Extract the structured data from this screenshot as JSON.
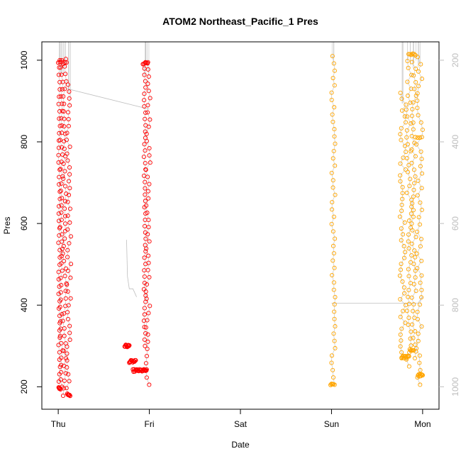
{
  "chart_data": {
    "type": "scatter",
    "title": "ATOM2 Northeast_Pacific_1 Pres",
    "xlabel": "Date",
    "ylabel": "Pres",
    "x_tick_labels": [
      "Thu",
      "Fri",
      "Sat",
      "Sun",
      "Mon"
    ],
    "x_tick_values": [
      0,
      1,
      2,
      3,
      4
    ],
    "xlim": [
      -0.18,
      4.18
    ],
    "ylim": [
      145,
      1045
    ],
    "y_ticks_left": [
      200,
      400,
      600,
      800,
      1000
    ],
    "y2_ticks_right": [
      200,
      400,
      600,
      800,
      1000
    ],
    "y2_note": "right axis inverted",
    "grid": false,
    "colors": {
      "red": "#ff0000",
      "orange": "#ffa500",
      "line": "#bebebe",
      "right_axis": "#bdbdbd"
    },
    "profiles": [
      {
        "color": "red",
        "x_start": 0.0,
        "x_end": 0.02,
        "p_top": 195,
        "p_bottom": 1000
      },
      {
        "color": "red",
        "x_start": 0.02,
        "x_end": 0.05,
        "p_top": 200,
        "p_bottom": 1000
      },
      {
        "color": "red",
        "x_start": 0.05,
        "x_end": 0.09,
        "p_top": 178,
        "p_bottom": 1003
      },
      {
        "color": "red",
        "x_start": 0.09,
        "x_end": 0.14,
        "p_top": 180,
        "p_bottom": 940
      },
      {
        "color": "red",
        "x_start": 0.94,
        "x_end": 0.96,
        "p_top": 300,
        "p_bottom": 995
      },
      {
        "color": "red",
        "x_start": 0.96,
        "x_end": 1.01,
        "p_top": 205,
        "p_bottom": 995
      },
      {
        "color": "orange",
        "x_start": 3.0,
        "x_end": 3.04,
        "p_top": 205,
        "p_bottom": 1010
      },
      {
        "color": "orange",
        "x_start": 3.75,
        "x_end": 3.82,
        "p_top": 270,
        "p_bottom": 920
      },
      {
        "color": "orange",
        "x_start": 3.82,
        "x_end": 3.88,
        "p_top": 250,
        "p_bottom": 1015
      },
      {
        "color": "orange",
        "x_start": 3.88,
        "x_end": 3.93,
        "p_top": 270,
        "p_bottom": 1012
      },
      {
        "color": "orange",
        "x_start": 3.93,
        "x_end": 4.0,
        "p_top": 205,
        "p_bottom": 1008
      }
    ],
    "clusters": [
      {
        "color": "red",
        "x": [
          0.73,
          0.78
        ],
        "p": 300,
        "count": 10
      },
      {
        "color": "red",
        "x": [
          0.78,
          0.85
        ],
        "p": 262,
        "count": 12
      },
      {
        "color": "red",
        "x": [
          0.82,
          0.97
        ],
        "p": 240,
        "count": 22
      },
      {
        "color": "red",
        "x": [
          0.005,
          0.025
        ],
        "p": 196,
        "count": 4
      },
      {
        "color": "red",
        "x": [
          0.1,
          0.13
        ],
        "p": 180,
        "count": 5
      },
      {
        "color": "red",
        "x": [
          0.0,
          0.09
        ],
        "p": 993,
        "count": 6
      },
      {
        "color": "red",
        "x": [
          0.93,
          0.98
        ],
        "p": 993,
        "count": 5
      },
      {
        "color": "orange",
        "x": [
          2.99,
          3.02
        ],
        "p": 207,
        "count": 4
      },
      {
        "color": "orange",
        "x": [
          3.77,
          3.85
        ],
        "p": 273,
        "count": 10
      },
      {
        "color": "orange",
        "x": [
          3.86,
          3.9
        ],
        "p": 290,
        "count": 5
      },
      {
        "color": "orange",
        "x": [
          3.95,
          4.0
        ],
        "p": 228,
        "count": 8
      },
      {
        "color": "orange",
        "x": [
          3.86,
          3.92
        ],
        "p": 1013,
        "count": 5
      },
      {
        "color": "orange",
        "x": [
          3.92,
          3.97
        ],
        "p": 813,
        "count": 3
      }
    ],
    "connecting_lines": [
      {
        "x": [
          0.1,
          1.0
        ],
        "p": [
          930,
          880
        ]
      },
      {
        "x": [
          0.75,
          0.76,
          0.78,
          0.82,
          0.86
        ],
        "p": [
          560,
          470,
          440,
          440,
          420
        ]
      },
      {
        "x": [
          3.0,
          3.95,
          4.0
        ],
        "p": [
          405,
          405,
          420
        ]
      }
    ]
  }
}
